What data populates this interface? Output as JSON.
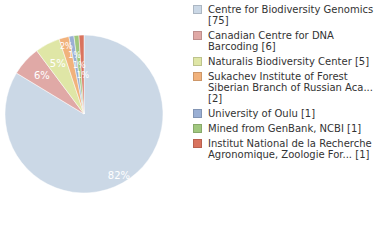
{
  "chart_data": {
    "type": "pie",
    "categories": [
      "Centre for Biodiversity Genomics [75]",
      "Canadian Centre for DNA Barcoding [6]",
      "Naturalis Biodiversity Center [5]",
      "Sukachev Institute of Forest Siberian Branch of Russian Aca... [2]",
      "University of Oulu [1]",
      "Mined from GenBank, NCBI [1]",
      "Institut National de la Recherche Agronomique, Zoologie For... [1]"
    ],
    "values": [
      82,
      6,
      5,
      2,
      1,
      1,
      1
    ],
    "value_labels": [
      "82%",
      "6%",
      "5%",
      "2%",
      "1%",
      "1%",
      "1%"
    ],
    "colors": [
      "#cbd8e6",
      "#e0a9a6",
      "#dfe6a6",
      "#f1b27c",
      "#9aafd4",
      "#a0c77e",
      "#d9735e"
    ],
    "data_labels": true,
    "legend": "right"
  }
}
